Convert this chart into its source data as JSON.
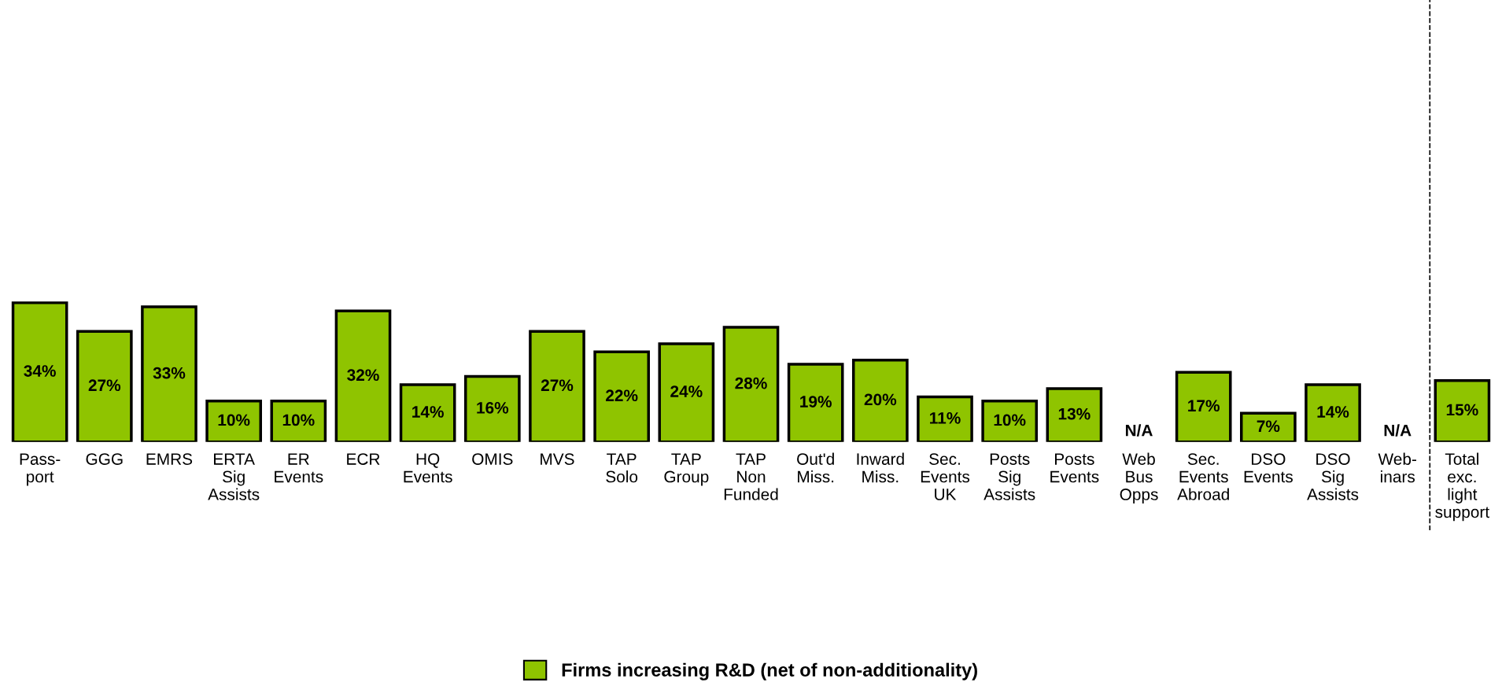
{
  "chart_data": {
    "type": "bar",
    "categories": [
      "Pass-\nport",
      "GGG",
      "EMRS",
      "ERTA\nSig\nAssists",
      "ER\nEvents",
      "ECR",
      "HQ\nEvents",
      "OMIS",
      "MVS",
      "TAP\nSolo",
      "TAP\nGroup",
      "TAP\nNon\nFunded",
      "Out'd\nMiss.",
      "Inward\nMiss.",
      "Sec.\nEvents\nUK",
      "Posts\nSig\nAssists",
      "Posts\nEvents",
      "Web\nBus\nOpps",
      "Sec.\nEvents\nAbroad",
      "DSO\nEvents",
      "DSO\nSig\nAssists",
      "Web-\ninars",
      "Total\nexc.\nlight\nsupport"
    ],
    "series": [
      {
        "name": "Firms increasing R&D (net of non-additionality)",
        "color": "#8fc400",
        "values": [
          34,
          27,
          33,
          10,
          10,
          32,
          14,
          16,
          27,
          22,
          24,
          28,
          19,
          20,
          11,
          10,
          13,
          null,
          17,
          7,
          14,
          null,
          15
        ],
        "value_labels": [
          "34%",
          "27%",
          "33%",
          "10%",
          "10%",
          "32%",
          "14%",
          "16%",
          "27%",
          "22%",
          "24%",
          "28%",
          "19%",
          "20%",
          "11%",
          "10%",
          "13%",
          "N/A",
          "17%",
          "7%",
          "14%",
          "N/A",
          "15%"
        ]
      }
    ],
    "ylim": [
      0,
      108
    ],
    "tick_labels": "x",
    "grid": false,
    "legend": "bottom"
  }
}
